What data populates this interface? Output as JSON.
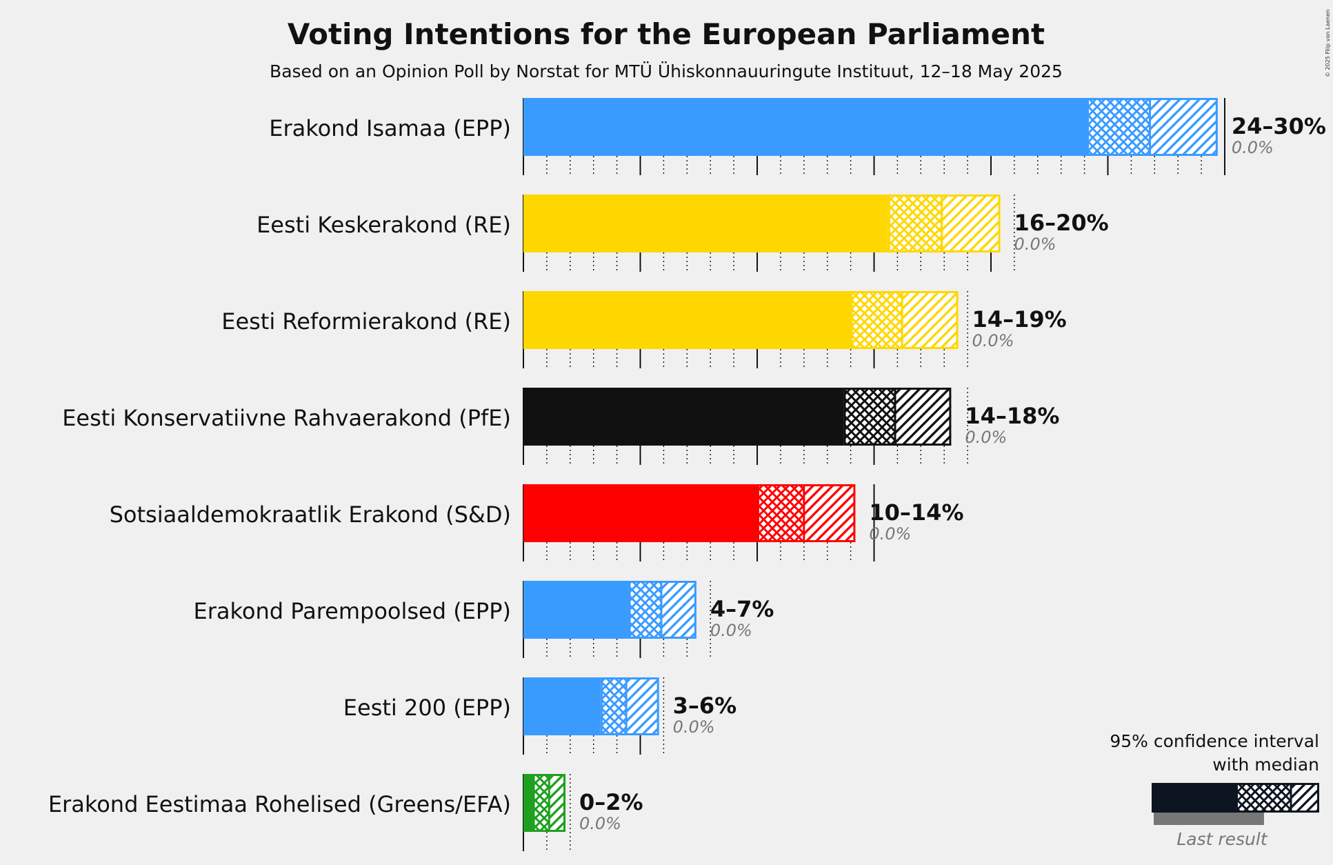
{
  "copyright": "© 2025 Filip van Laenen",
  "chart_data": {
    "type": "bar",
    "orientation": "horizontal",
    "title": "Voting Intentions for the European Parliament",
    "subtitle": "Based on an Opinion Poll by Norstat for MTÜ Ühiskonnauuringute Instituut, 12–18 May 2025",
    "x_unit": "%",
    "x_range": [
      0,
      31
    ],
    "grid": "dotted every 1%, solid every 5%",
    "categories": [
      "Erakond Isamaa (EPP)",
      "Eesti Keskerakond (RE)",
      "Eesti Reformierakond (RE)",
      "Eesti Konservatiivne Rahvaerakond (PfE)",
      "Sotsiaaldemokraatlik Erakond (S&D)",
      "Erakond Parempoolsed (EPP)",
      "Eesti 200 (EPP)",
      "Erakond Eestimaa Rohelised (Greens/EFA)"
    ],
    "series": [
      {
        "values": [
          {
            "ci_low": 24.1,
            "ci_mid_low": 26.8,
            "median": 26.8,
            "ci_mid_high": 26.8,
            "ci_high": 29.7,
            "label": "24–30%",
            "last_result": "0.0%",
            "color": "#3a9bff"
          },
          {
            "ci_low": 15.6,
            "ci_mid_low": 17.9,
            "median": 17.9,
            "ci_mid_high": 17.9,
            "ci_high": 20.4,
            "label": "16–20%",
            "last_result": "0.0%",
            "color": "#ffd700"
          },
          {
            "ci_low": 14.0,
            "ci_mid_low": 16.2,
            "median": 16.2,
            "ci_mid_high": 16.2,
            "ci_high": 18.6,
            "label": "14–19%",
            "last_result": "0.0%",
            "color": "#ffd700"
          },
          {
            "ci_low": 13.7,
            "ci_mid_low": 15.9,
            "median": 15.9,
            "ci_mid_high": 15.9,
            "ci_high": 18.3,
            "label": "14–18%",
            "last_result": "0.0%",
            "color": "#111111"
          },
          {
            "ci_low": 10.0,
            "ci_mid_low": 12.0,
            "median": 12.0,
            "ci_mid_high": 12.0,
            "ci_high": 14.2,
            "label": "10–14%",
            "last_result": "0.0%",
            "color": "#ff0000"
          },
          {
            "ci_low": 4.5,
            "ci_mid_low": 5.9,
            "median": 5.9,
            "ci_mid_high": 5.9,
            "ci_high": 7.4,
            "label": "4–7%",
            "last_result": "0.0%",
            "color": "#3a9bff"
          },
          {
            "ci_low": 3.3,
            "ci_mid_low": 4.4,
            "median": 4.4,
            "ci_mid_high": 4.4,
            "ci_high": 5.8,
            "label": "3–6%",
            "last_result": "0.0%",
            "color": "#3a9bff"
          },
          {
            "ci_low": 0.4,
            "ci_mid_low": 1.1,
            "median": 1.1,
            "ci_mid_high": 1.1,
            "ci_high": 1.8,
            "label": "0–2%",
            "last_result": "0.0%",
            "color": "#1ea01e"
          }
        ]
      }
    ],
    "legend": {
      "position": "bottom-right",
      "line1": "95% confidence interval",
      "line2": "with median",
      "last_result": "Last result",
      "color": "#0d1520"
    }
  }
}
